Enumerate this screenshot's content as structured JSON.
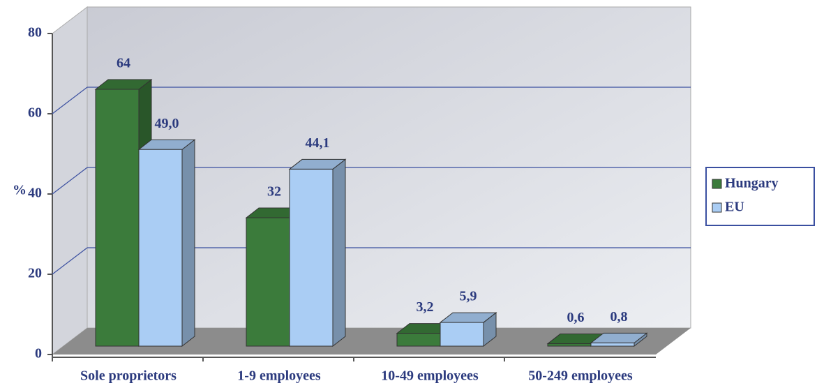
{
  "chart_data": {
    "type": "bar3d",
    "y_label": "%",
    "categories": [
      "Sole proprietors",
      "1-9 employees",
      "10-49 employees",
      "50-249 employees"
    ],
    "series": [
      {
        "name": "Hungary",
        "color": "#3b7b3b",
        "values": [
          64,
          32,
          3.2,
          0.6
        ],
        "value_labels": [
          "64",
          "32",
          "3,2",
          "0,6"
        ]
      },
      {
        "name": "EU",
        "color": "#aacdf4",
        "values": [
          49.0,
          44.1,
          5.9,
          0.8
        ],
        "value_labels": [
          "49,0",
          "44,1",
          "5,9",
          "0,8"
        ]
      }
    ],
    "ylim": [
      0,
      80
    ],
    "yticks": [
      0,
      20,
      40,
      60,
      80
    ],
    "grid": true,
    "legend": "right"
  }
}
